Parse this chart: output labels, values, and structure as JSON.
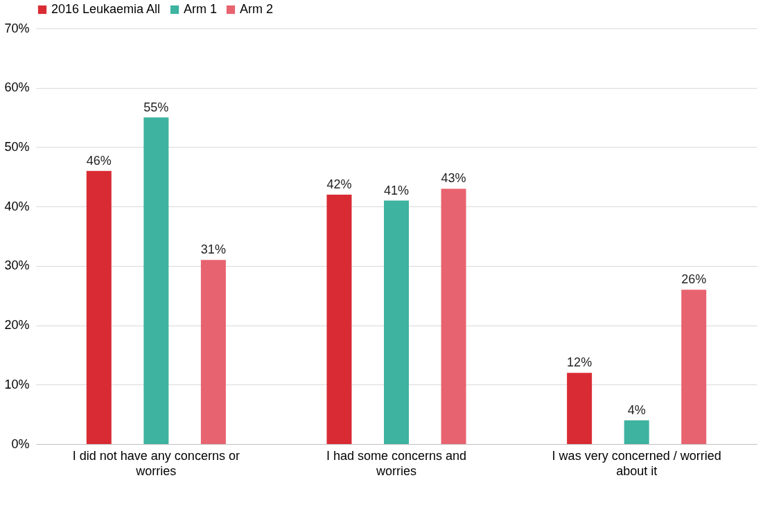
{
  "chart_data": {
    "type": "bar",
    "categories": [
      "I did not have any concerns or worries",
      "I had some concerns and worries",
      "I was very concerned / worried about it"
    ],
    "series": [
      {
        "name": "2016 Leukaemia All",
        "color": "#d92b33",
        "values": [
          46,
          42,
          12
        ],
        "value_labels": [
          "46%",
          "42%",
          "12%"
        ]
      },
      {
        "name": "Arm 1",
        "color": "#3db3a0",
        "values": [
          55,
          41,
          4
        ],
        "value_labels": [
          "55%",
          "41%",
          "4%"
        ]
      },
      {
        "name": "Arm 2",
        "color": "#e7636f",
        "values": [
          31,
          43,
          26
        ],
        "value_labels": [
          "31%",
          "43%",
          "26%"
        ]
      }
    ],
    "ylim": [
      0,
      70
    ],
    "yticks": [
      {
        "value": 0,
        "label": "0%"
      },
      {
        "value": 10,
        "label": "10%"
      },
      {
        "value": 20,
        "label": "20%"
      },
      {
        "value": 30,
        "label": "30%"
      },
      {
        "value": 40,
        "label": "40%"
      },
      {
        "value": 50,
        "label": "50%"
      },
      {
        "value": 60,
        "label": "60%"
      },
      {
        "value": 70,
        "label": "70%"
      }
    ],
    "grid": "y",
    "legend": "top"
  }
}
